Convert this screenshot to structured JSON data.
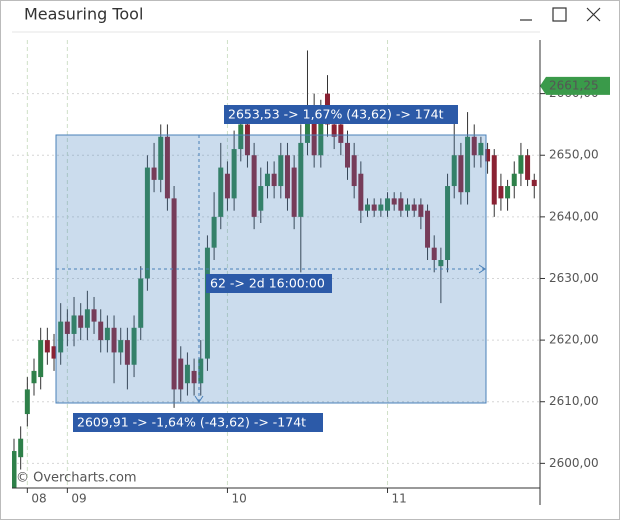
{
  "window_title": "Measuring Tool",
  "watermark": "© Overcharts.com",
  "chart_data": {
    "type": "candlestick",
    "categories": [
      null,
      null,
      "08",
      null,
      null,
      null,
      null,
      null,
      "09",
      null,
      null,
      null,
      null,
      null,
      null,
      null,
      null,
      null,
      null,
      null,
      null,
      null,
      null,
      null,
      null,
      null,
      null,
      null,
      null,
      null,
      null,
      null,
      "10",
      null,
      null,
      null,
      null,
      null,
      null,
      null,
      null,
      null,
      null,
      null,
      null,
      null,
      null,
      null,
      null,
      null,
      null,
      null,
      null,
      null,
      null,
      null,
      "11",
      null,
      null,
      null,
      null,
      null,
      null,
      null,
      null,
      null,
      null,
      null,
      null,
      null,
      null,
      null,
      null,
      null,
      null,
      null,
      null,
      null,
      null
    ],
    "open": [
      2596,
      2601,
      2608,
      2613,
      2614,
      2620,
      2619,
      2618,
      2623,
      2621,
      2624,
      2622,
      2625,
      2623,
      2620,
      2622,
      2618,
      2620,
      2616,
      2622,
      2630,
      2648,
      2646,
      2653,
      2643,
      2617,
      2613,
      2615,
      2613,
      2617,
      2635,
      2640,
      2647,
      2643,
      2651,
      2655,
      2650,
      2641,
      2645,
      2647,
      2645,
      2650,
      2648,
      2640,
      2652,
      2658,
      2650,
      2660,
      2655,
      2655,
      2652,
      2650,
      2647,
      2641,
      2642,
      2641,
      2641,
      2643,
      2643,
      2641,
      2642,
      2642,
      2641,
      2635,
      2632,
      2633,
      2645,
      2650,
      2644,
      2653,
      2650,
      2651,
      2650,
      2645,
      2643,
      2645,
      2647,
      2650,
      2646
    ],
    "high": [
      2604,
      2606,
      2614,
      2617,
      2622,
      2622,
      2621,
      2626,
      2625,
      2627,
      2626,
      2628,
      2627,
      2625,
      2624,
      2624,
      2622,
      2622,
      2624,
      2632,
      2650,
      2652,
      2655,
      2655,
      2645,
      2619,
      2618,
      2617,
      2620,
      2637,
      2644,
      2652,
      2649,
      2654,
      2658,
      2657,
      2652,
      2648,
      2649,
      2649,
      2652,
      2652,
      2650,
      2655,
      2667,
      2660,
      2659,
      2663,
      2657,
      2657,
      2654,
      2652,
      2649,
      2643,
      2643,
      2643,
      2644,
      2644,
      2644,
      2643,
      2643,
      2643,
      2642,
      2637,
      2635,
      2647,
      2658,
      2652,
      2657,
      2655,
      2653,
      2652,
      2651,
      2647,
      2646,
      2649,
      2652,
      2651,
      2647
    ],
    "low": [
      2593,
      2599,
      2606,
      2611,
      2612,
      2616,
      2615,
      2616,
      2619,
      2619,
      2620,
      2620,
      2621,
      2618,
      2618,
      2613,
      2616,
      2612,
      2614,
      2620,
      2628,
      2644,
      2644,
      2641,
      2609,
      2610,
      2611,
      2611,
      2611,
      2615,
      2633,
      2638,
      2641,
      2641,
      2649,
      2648,
      2638,
      2639,
      2643,
      2643,
      2643,
      2641,
      2638,
      2631,
      2650,
      2648,
      2648,
      2653,
      2651,
      2650,
      2646,
      2643,
      2639,
      2640,
      2640,
      2640,
      2640,
      2641,
      2640,
      2640,
      2640,
      2638,
      2633,
      2631,
      2626,
      2631,
      2643,
      2642,
      2642,
      2648,
      2648,
      2647,
      2640,
      2641,
      2641,
      2643,
      2645,
      2645,
      2643
    ],
    "close": [
      2602,
      2604,
      2612,
      2615,
      2620,
      2618,
      2617,
      2623,
      2621,
      2624,
      2622,
      2625,
      2623,
      2620,
      2622,
      2618,
      2620,
      2616,
      2622,
      2630,
      2648,
      2646,
      2653,
      2643,
      2612,
      2612,
      2616,
      2613,
      2617,
      2635,
      2640,
      2648,
      2643,
      2651,
      2655,
      2650,
      2640,
      2645,
      2647,
      2645,
      2650,
      2643,
      2640,
      2652,
      2658,
      2650,
      2656,
      2655,
      2653,
      2652,
      2648,
      2645,
      2641,
      2642,
      2641,
      2642,
      2643,
      2642,
      2641,
      2642,
      2641,
      2640,
      2635,
      2633,
      2633,
      2645,
      2650,
      2644,
      2653,
      2650,
      2652,
      2649,
      2642,
      2643,
      2645,
      2647,
      2650,
      2646,
      2645
    ],
    "up_color": "#2e8049",
    "down_color": "#8a2233",
    "ylim": [
      2596,
      2668.7
    ],
    "yticks": [
      {
        "value": 2600,
        "label": "2600,00"
      },
      {
        "value": 2610,
        "label": "2610,00"
      },
      {
        "value": 2620,
        "label": "2620,00"
      },
      {
        "value": 2630,
        "label": "2630,00"
      },
      {
        "value": 2640,
        "label": "2640,00"
      },
      {
        "value": 2650,
        "label": "2650,00"
      },
      {
        "value": 2660,
        "label": "2660,00"
      }
    ],
    "grid": true,
    "last_price": {
      "value": 2661.25,
      "label": "2661,25"
    },
    "measure": {
      "top_label": "2653,53 -> 1,67% (43,62) -> 174t",
      "mid_label": "62 -> 2d 16:00:00",
      "bottom_label": "2609,91 -> -1,64% (-43,62) -> -174t"
    }
  }
}
